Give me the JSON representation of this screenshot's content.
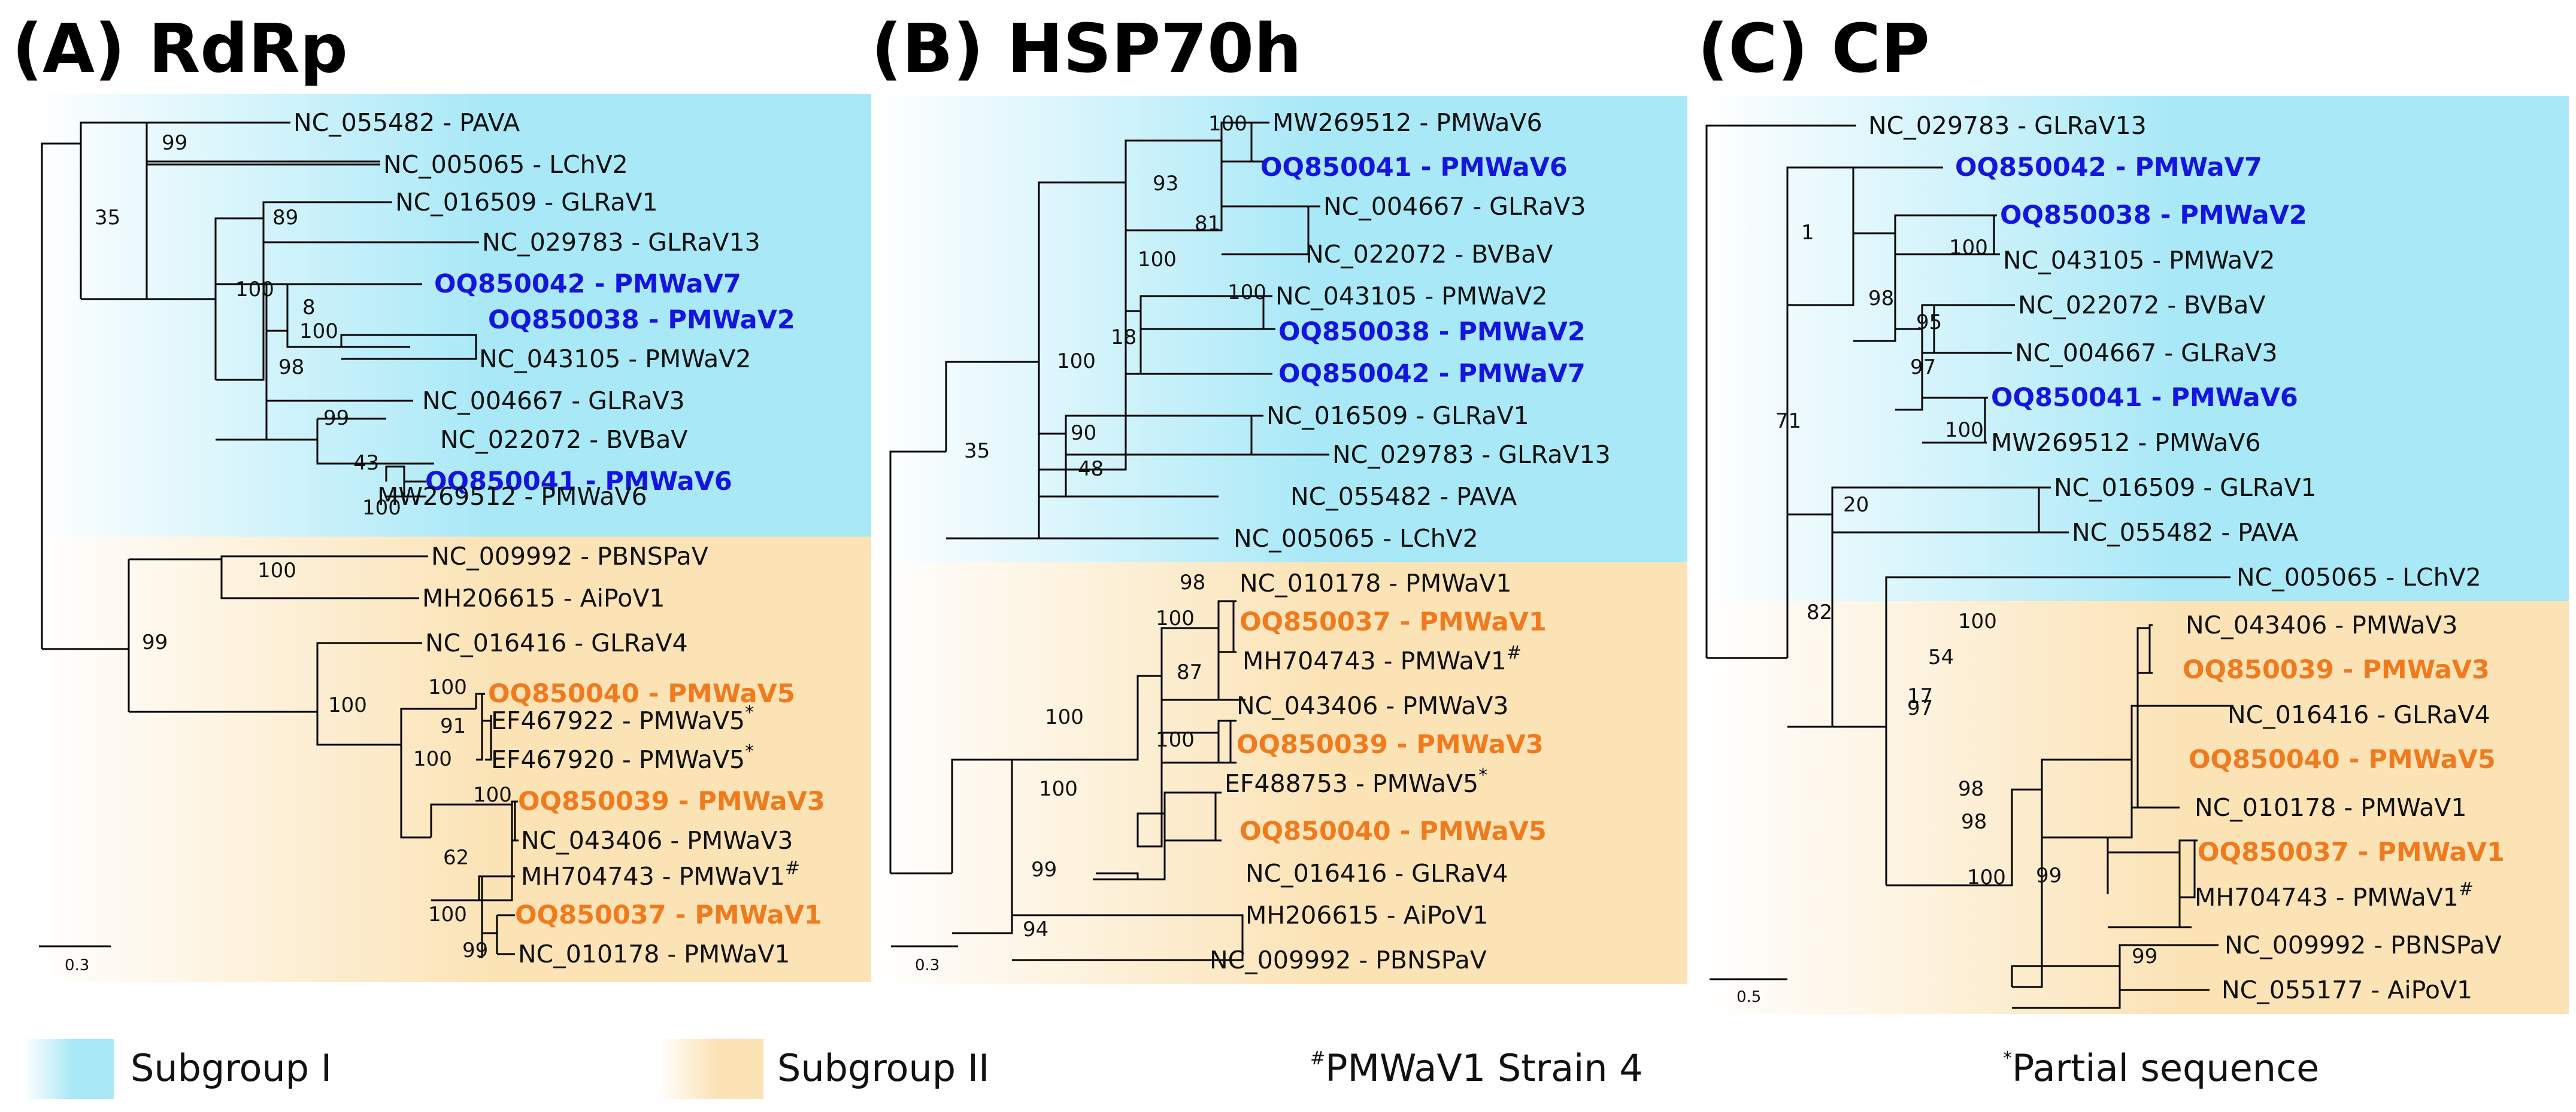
{
  "panels": {
    "a": {
      "title": "(A) RdRp",
      "scale_label": "0.3",
      "leaves": [
        {
          "text": "NC_055482 -  PAVA",
          "cls": ""
        },
        {
          "text": "NC_005065 -  LChV2",
          "cls": ""
        },
        {
          "text": "NC_016509 -  GLRaV1",
          "cls": ""
        },
        {
          "text": "NC_029783 -  GLRaV13",
          "cls": ""
        },
        {
          "text": "OQ850042 - PMWaV7",
          "cls": "s1"
        },
        {
          "text": "OQ850038 - PMWaV2",
          "cls": "s1"
        },
        {
          "text": "NC_043105 -  PMWaV2",
          "cls": ""
        },
        {
          "text": "NC_004667 -  GLRaV3",
          "cls": ""
        },
        {
          "text": "NC_022072 -  BVBaV",
          "cls": ""
        },
        {
          "text": "OQ850041 - PMWaV6",
          "cls": "s1"
        },
        {
          "text": "MW269512 -  PMWaV6",
          "cls": ""
        },
        {
          "text": "NC_009992 -  PBNSPaV",
          "cls": ""
        },
        {
          "text": "MH206615 -  AiPoV1",
          "cls": ""
        },
        {
          "text": "NC_016416 -  GLRaV4",
          "cls": ""
        },
        {
          "text": "OQ850040 - PMWaV5",
          "cls": "s2"
        },
        {
          "text": "EF467922 -  PMWaV5",
          "cls": "",
          "sup": "*"
        },
        {
          "text": "EF467920 -  PMWaV5",
          "cls": "",
          "sup": "*"
        },
        {
          "text": "OQ850039 - PMWaV3",
          "cls": "s2"
        },
        {
          "text": "NC_043406 -  PMWaV3",
          "cls": ""
        },
        {
          "text": "MH704743 -  PMWaV1",
          "cls": "",
          "sup": "#"
        },
        {
          "text": "OQ850037 - PMWaV1",
          "cls": "s2"
        },
        {
          "text": "NC_010178 -  PMWaV1",
          "cls": ""
        }
      ],
      "bootstrap": [
        "99",
        "35",
        "89",
        "100",
        "8",
        "100",
        "98",
        "99",
        "43",
        "100",
        "100",
        "99",
        "100",
        "100",
        "91",
        "100",
        "100",
        "62",
        "100",
        "99"
      ]
    },
    "b": {
      "title": "(B) HSP70h",
      "scale_label": "0.3",
      "leaves": [
        {
          "text": "MW269512 -  PMWaV6",
          "cls": ""
        },
        {
          "text": "OQ850041 - PMWaV6",
          "cls": "s1"
        },
        {
          "text": "NC_004667 -  GLRaV3",
          "cls": ""
        },
        {
          "text": "NC_022072 -  BVBaV",
          "cls": ""
        },
        {
          "text": "NC_043105 -  PMWaV2",
          "cls": ""
        },
        {
          "text": "OQ850038 - PMWaV2",
          "cls": "s1"
        },
        {
          "text": "OQ850042 - PMWaV7",
          "cls": "s1"
        },
        {
          "text": "NC_016509 -  GLRaV1",
          "cls": ""
        },
        {
          "text": "NC_029783 -  GLRaV13",
          "cls": ""
        },
        {
          "text": "NC_055482 -  PAVA",
          "cls": ""
        },
        {
          "text": "NC_005065 -  LChV2",
          "cls": ""
        },
        {
          "text": "NC_010178 - PMWaV1",
          "cls": ""
        },
        {
          "text": "OQ850037 - PMWaV1",
          "cls": "s2"
        },
        {
          "text": "MH704743 -  PMWaV1",
          "cls": "",
          "sup": "#"
        },
        {
          "text": "NC_043406 -  PMWaV3",
          "cls": ""
        },
        {
          "text": "OQ850039 - PMWaV3",
          "cls": "s2"
        },
        {
          "text": "EF488753 - PMWaV5",
          "cls": "",
          "sup": "*"
        },
        {
          "text": "OQ850040 - PMWaV5",
          "cls": "s2"
        },
        {
          "text": "NC_016416 -  GLRaV4",
          "cls": ""
        },
        {
          "text": "MH206615 -  AiPoV1",
          "cls": ""
        },
        {
          "text": "NC_009992 -  PBNSPaV",
          "cls": ""
        }
      ],
      "bootstrap": [
        "100",
        "93",
        "81",
        "100",
        "100",
        "18",
        "100",
        "90",
        "48",
        "35",
        "98",
        "100",
        "87",
        "100",
        "100",
        "100",
        "99",
        "94"
      ]
    },
    "c": {
      "title": "(C) CP",
      "scale_label": "0.5",
      "leaves": [
        {
          "text": "NC_029783 - GLRaV13",
          "cls": ""
        },
        {
          "text": "OQ850042 - PMWaV7",
          "cls": "s1"
        },
        {
          "text": "OQ850038 - PMWaV2",
          "cls": "s1"
        },
        {
          "text": "NC_043105 - PMWaV2",
          "cls": ""
        },
        {
          "text": "NC_022072 - BVBaV",
          "cls": ""
        },
        {
          "text": "NC_004667 - GLRaV3",
          "cls": ""
        },
        {
          "text": "OQ850041 - PMWaV6",
          "cls": "s1"
        },
        {
          "text": "MW269512 - PMWaV6",
          "cls": ""
        },
        {
          "text": "NC_016509 - GLRaV1",
          "cls": ""
        },
        {
          "text": "NC_055482 - PAVA",
          "cls": ""
        },
        {
          "text": "NC_005065 - LChV2",
          "cls": ""
        },
        {
          "text": "NC_043406 - PMWaV3",
          "cls": ""
        },
        {
          "text": "OQ850039 - PMWaV3",
          "cls": "s2"
        },
        {
          "text": "NC_016416 - GLRaV4",
          "cls": ""
        },
        {
          "text": "OQ850040 - PMWaV5",
          "cls": "s2"
        },
        {
          "text": "NC_010178 - PMWaV1",
          "cls": ""
        },
        {
          "text": "OQ850037 - PMWaV1",
          "cls": "s2"
        },
        {
          "text": "MH704743 - PMWaV1",
          "cls": "",
          "sup": "#"
        },
        {
          "text": "NC_009992 - PBNSPaV",
          "cls": ""
        },
        {
          "text": "NC_055177 - AiPoV1",
          "cls": ""
        }
      ],
      "bootstrap": [
        "1",
        "100",
        "98",
        "95",
        "97",
        "100",
        "71",
        "20",
        "82",
        "100",
        "54",
        "17",
        "98",
        "98",
        "100",
        "97",
        "99",
        "99"
      ]
    }
  },
  "legend": {
    "subgroup1": "Subgroup I",
    "subgroup2": "Subgroup II",
    "strain_mark": "#",
    "strain_text": "PMWaV1 Strain 4",
    "partial_mark": "*",
    "partial_text": "Partial sequence"
  },
  "colors": {
    "subgroup1_fill": "#a8e8f7",
    "subgroup2_fill": "#fbe3b6",
    "subgroup1_label": "#1515dd",
    "subgroup2_label": "#f07a1e"
  }
}
